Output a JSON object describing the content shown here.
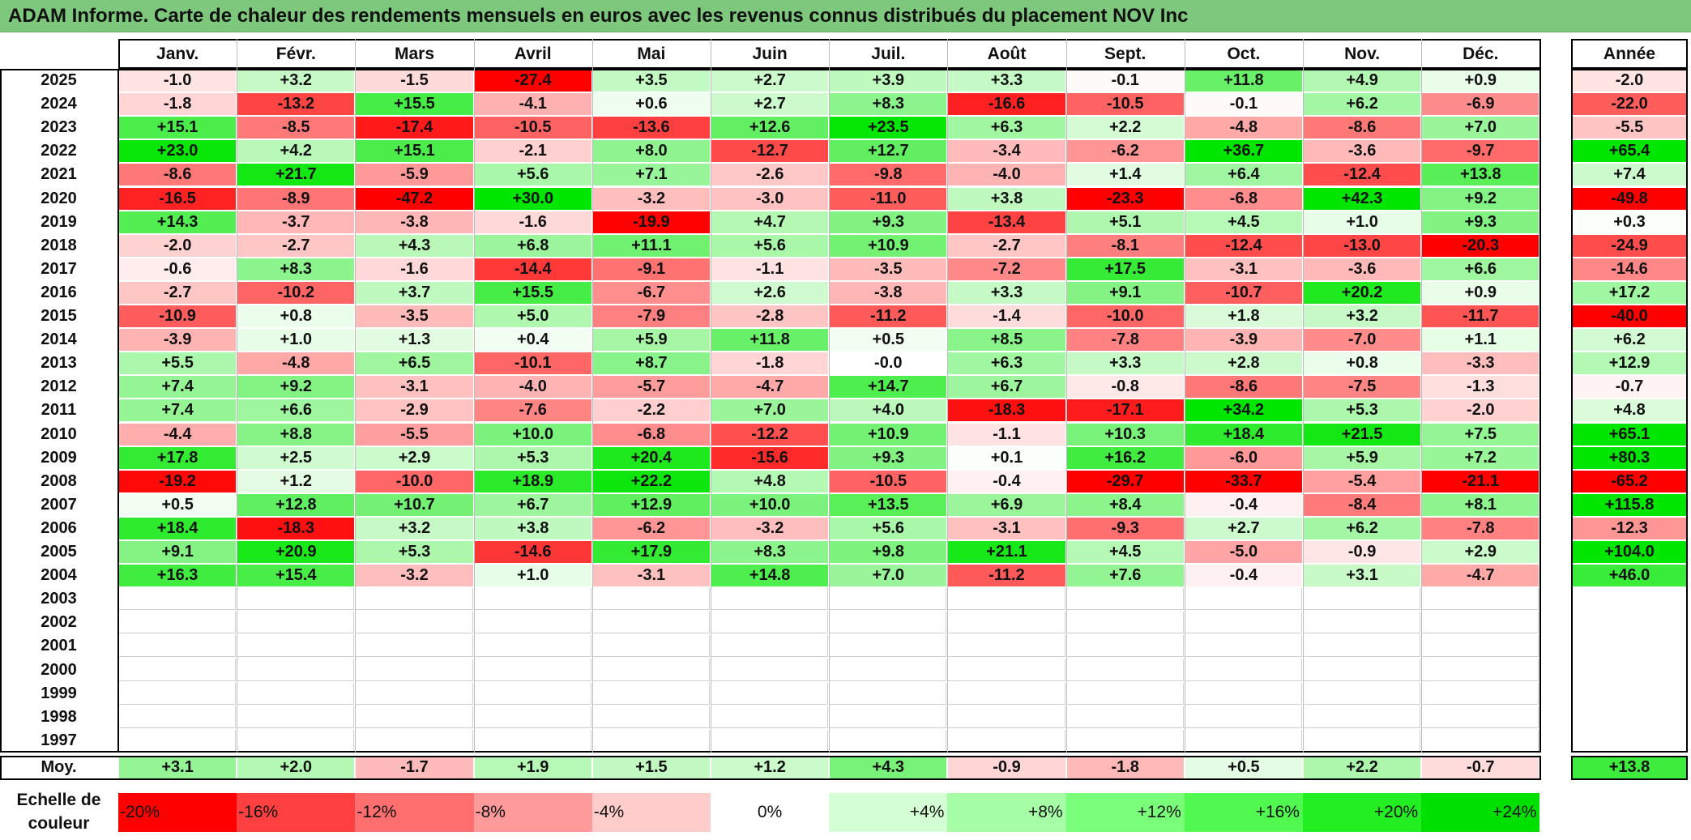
{
  "title": "ADAM Informe. Carte de chaleur des rendements mensuels en euros avec les revenus connus distribués du placement NOV Inc",
  "chart_data": {
    "type": "heatmap",
    "months": [
      "Janv.",
      "Févr.",
      "Mars",
      "Avril",
      "Mai",
      "Juin",
      "Juil.",
      "Août",
      "Sept.",
      "Oct.",
      "Nov.",
      "Déc."
    ],
    "year_header": "Année",
    "rows": [
      {
        "year": "2025",
        "values": [
          -1.0,
          3.2,
          -1.5,
          -27.4,
          3.5,
          2.7,
          3.9,
          3.3,
          -0.1,
          11.8,
          4.9,
          0.9
        ],
        "annual": -2.0
      },
      {
        "year": "2024",
        "values": [
          -1.8,
          -13.2,
          15.5,
          -4.1,
          0.6,
          2.7,
          8.3,
          -16.6,
          -10.5,
          -0.1,
          6.2,
          -6.9
        ],
        "annual": -22.0
      },
      {
        "year": "2023",
        "values": [
          15.1,
          -8.5,
          -17.4,
          -10.5,
          -13.6,
          12.6,
          23.5,
          6.3,
          2.2,
          -4.8,
          -8.6,
          7.0
        ],
        "annual": -5.5
      },
      {
        "year": "2022",
        "values": [
          23.0,
          4.2,
          15.1,
          -2.1,
          8.0,
          -12.7,
          12.7,
          -3.4,
          -6.2,
          36.7,
          -3.6,
          -9.7
        ],
        "annual": 65.4
      },
      {
        "year": "2021",
        "values": [
          -8.6,
          21.7,
          -5.9,
          5.6,
          7.1,
          -2.6,
          -9.8,
          -4.0,
          1.4,
          6.4,
          -12.4,
          13.8
        ],
        "annual": 7.4
      },
      {
        "year": "2020",
        "values": [
          -16.5,
          -8.9,
          -47.2,
          30.0,
          -3.2,
          -3.0,
          -11.0,
          3.8,
          -23.3,
          -6.8,
          42.3,
          9.2
        ],
        "annual": -49.8
      },
      {
        "year": "2019",
        "values": [
          14.3,
          -3.7,
          -3.8,
          -1.6,
          -19.9,
          4.7,
          9.3,
          -13.4,
          5.1,
          4.5,
          1.0,
          9.3
        ],
        "annual": 0.3
      },
      {
        "year": "2018",
        "values": [
          -2.0,
          -2.7,
          4.3,
          6.8,
          11.1,
          5.6,
          10.9,
          -2.7,
          -8.1,
          -12.4,
          -13.0,
          -20.3
        ],
        "annual": -24.9
      },
      {
        "year": "2017",
        "values": [
          -0.6,
          8.3,
          -1.6,
          -14.4,
          -9.1,
          -1.1,
          -3.5,
          -7.2,
          17.5,
          -3.1,
          -3.6,
          6.6
        ],
        "annual": -14.6
      },
      {
        "year": "2016",
        "values": [
          -2.7,
          -10.2,
          3.7,
          15.5,
          -6.7,
          2.6,
          -3.8,
          3.3,
          9.1,
          -10.7,
          20.2,
          0.9
        ],
        "annual": 17.2
      },
      {
        "year": "2015",
        "values": [
          -10.9,
          0.8,
          -3.5,
          5.0,
          -7.9,
          -2.8,
          -11.2,
          -1.4,
          -10.0,
          1.8,
          3.2,
          -11.7
        ],
        "annual": -40.0
      },
      {
        "year": "2014",
        "values": [
          -3.9,
          1.0,
          1.3,
          0.4,
          5.9,
          11.8,
          0.5,
          8.5,
          -7.8,
          -3.9,
          -7.0,
          1.1
        ],
        "annual": 6.2
      },
      {
        "year": "2013",
        "values": [
          5.5,
          -4.8,
          6.5,
          -10.1,
          8.7,
          -1.8,
          -0.0,
          6.3,
          3.3,
          2.8,
          0.8,
          -3.3
        ],
        "annual": 12.9
      },
      {
        "year": "2012",
        "values": [
          7.4,
          9.2,
          -3.1,
          -4.0,
          -5.7,
          -4.7,
          14.7,
          6.7,
          -0.8,
          -8.6,
          -7.5,
          -1.3
        ],
        "annual": -0.7
      },
      {
        "year": "2011",
        "values": [
          7.4,
          6.6,
          -2.9,
          -7.6,
          -2.2,
          7.0,
          4.0,
          -18.3,
          -17.1,
          34.2,
          5.3,
          -2.0
        ],
        "annual": 4.8
      },
      {
        "year": "2010",
        "values": [
          -4.4,
          8.8,
          -5.5,
          10.0,
          -6.8,
          -12.2,
          10.9,
          -1.1,
          10.3,
          18.4,
          21.5,
          7.5
        ],
        "annual": 65.1
      },
      {
        "year": "2009",
        "values": [
          17.8,
          2.5,
          2.9,
          5.3,
          20.4,
          -15.6,
          9.3,
          0.1,
          16.2,
          -6.0,
          5.9,
          7.2
        ],
        "annual": 80.3
      },
      {
        "year": "2008",
        "values": [
          -19.2,
          1.2,
          -10.0,
          18.9,
          22.2,
          4.8,
          -10.5,
          -0.4,
          -29.7,
          -33.7,
          -5.4,
          -21.1
        ],
        "annual": -65.2
      },
      {
        "year": "2007",
        "values": [
          0.5,
          12.8,
          10.7,
          6.7,
          12.9,
          10.0,
          13.5,
          6.9,
          8.4,
          -0.4,
          -8.4,
          8.1
        ],
        "annual": 115.8
      },
      {
        "year": "2006",
        "values": [
          18.4,
          -18.3,
          3.2,
          3.8,
          -6.2,
          -3.2,
          5.6,
          -3.1,
          -9.3,
          2.7,
          6.2,
          -7.8
        ],
        "annual": -12.3
      },
      {
        "year": "2005",
        "values": [
          9.1,
          20.9,
          5.3,
          -14.6,
          17.9,
          8.3,
          9.8,
          21.1,
          4.5,
          -5.0,
          -0.9,
          2.9
        ],
        "annual": 104.0
      },
      {
        "year": "2004",
        "values": [
          16.3,
          15.4,
          -3.2,
          1.0,
          -3.1,
          14.8,
          7.0,
          -11.2,
          7.6,
          -0.4,
          3.1,
          -4.7
        ],
        "annual": 46.0
      },
      {
        "year": "2003",
        "values": [
          null,
          null,
          null,
          null,
          null,
          null,
          null,
          null,
          null,
          null,
          null,
          null
        ],
        "annual": null
      },
      {
        "year": "2002",
        "values": [
          null,
          null,
          null,
          null,
          null,
          null,
          null,
          null,
          null,
          null,
          null,
          null
        ],
        "annual": null
      },
      {
        "year": "2001",
        "values": [
          null,
          null,
          null,
          null,
          null,
          null,
          null,
          null,
          null,
          null,
          null,
          null
        ],
        "annual": null
      },
      {
        "year": "2000",
        "values": [
          null,
          null,
          null,
          null,
          null,
          null,
          null,
          null,
          null,
          null,
          null,
          null
        ],
        "annual": null
      },
      {
        "year": "1999",
        "values": [
          null,
          null,
          null,
          null,
          null,
          null,
          null,
          null,
          null,
          null,
          null,
          null
        ],
        "annual": null
      },
      {
        "year": "1998",
        "values": [
          null,
          null,
          null,
          null,
          null,
          null,
          null,
          null,
          null,
          null,
          null,
          null
        ],
        "annual": null
      },
      {
        "year": "1997",
        "values": [
          null,
          null,
          null,
          null,
          null,
          null,
          null,
          null,
          null,
          null,
          null,
          null
        ],
        "annual": null
      }
    ],
    "average": {
      "label": "Moy.",
      "values": [
        3.1,
        2.0,
        -1.7,
        1.9,
        1.5,
        1.2,
        4.3,
        -0.9,
        -1.8,
        0.5,
        2.2,
        -0.7
      ],
      "annual": 13.8
    },
    "scale": {
      "label": "Echelle de couleur",
      "stops": [
        {
          "label": "-20%",
          "color": "#ff0000"
        },
        {
          "label": "-16%",
          "color": "#ff4040"
        },
        {
          "label": "-12%",
          "color": "#ff6f6f"
        },
        {
          "label": "-8%",
          "color": "#ff9a9a"
        },
        {
          "label": "-4%",
          "color": "#ffcccc"
        },
        {
          "label": "0%",
          "color": "#ffffff"
        },
        {
          "label": "+4%",
          "color": "#d4ffd4"
        },
        {
          "label": "+8%",
          "color": "#a6ffa6"
        },
        {
          "label": "+12%",
          "color": "#79ff79"
        },
        {
          "label": "+16%",
          "color": "#50f850"
        },
        {
          "label": "+20%",
          "color": "#22ee22"
        },
        {
          "label": "+24%",
          "color": "#00e000"
        }
      ]
    }
  }
}
